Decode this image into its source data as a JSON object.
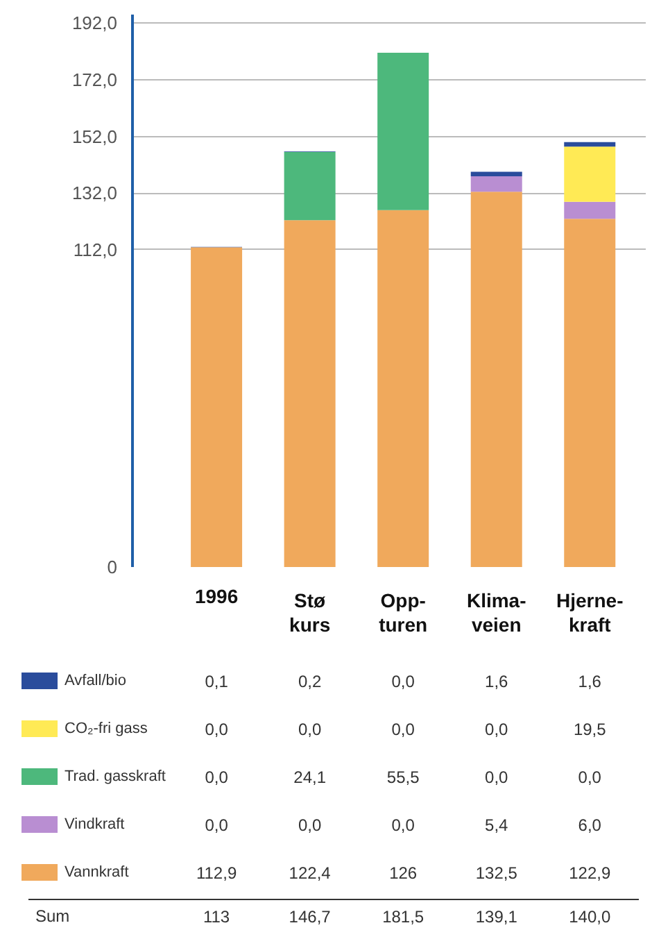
{
  "chart_data": {
    "type": "bar",
    "stacked": true,
    "categories": [
      "1996",
      "Stø\nkurs",
      "Opp-\nturen",
      "Klima-\nveien",
      "Hjerne-\nkraft"
    ],
    "series": [
      {
        "name": "Vannkraft",
        "color": "#f0a95c",
        "values": [
          112.9,
          122.4,
          126,
          132.5,
          122.9
        ],
        "value_labels": [
          "112,9",
          "122,4",
          "126",
          "132,5",
          "122,9"
        ]
      },
      {
        "name": "Vindkraft",
        "color": "#b98ed2",
        "values": [
          0.0,
          0.0,
          0.0,
          5.4,
          6.0
        ],
        "value_labels": [
          "0,0",
          "0,0",
          "0,0",
          "5,4",
          "6,0"
        ]
      },
      {
        "name": "Trad. gasskraft",
        "color": "#4db87c",
        "values": [
          0.0,
          24.1,
          55.5,
          0.0,
          0.0
        ],
        "value_labels": [
          "0,0",
          "24,1",
          "55,5",
          "0,0",
          "0,0"
        ]
      },
      {
        "name": "CO₂-fri gass",
        "color": "#ffea55",
        "values": [
          0.0,
          0.0,
          0.0,
          0.0,
          19.5
        ],
        "value_labels": [
          "0,0",
          "0,0",
          "0,0",
          "0,0",
          "19,5"
        ]
      },
      {
        "name": "Avfall/bio",
        "color": "#2a4c9c",
        "values": [
          0.1,
          0.2,
          0.0,
          1.6,
          1.6
        ],
        "value_labels": [
          "0,1",
          "0,2",
          "0,0",
          "1,6",
          "1,6"
        ]
      }
    ],
    "annotations": [
      "Sum",
      "113",
      "146,7",
      "181,5",
      "139,1",
      "140,0"
    ],
    "ylim": [
      0,
      195
    ],
    "yticks": [
      0,
      {
        "value": 112,
        "label": "112,0"
      },
      {
        "value": 132,
        "label": "132,0"
      },
      {
        "value": 152,
        "label": "152,0"
      },
      {
        "value": 172,
        "label": "172,0"
      },
      {
        "value": 192,
        "label": "192,0"
      }
    ],
    "grid": "y",
    "legend": "bottom"
  }
}
